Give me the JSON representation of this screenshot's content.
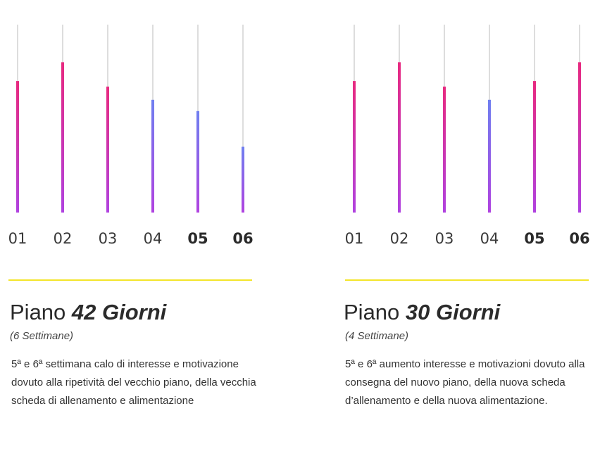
{
  "chart_data": [
    {
      "type": "bar",
      "categories": [
        "01",
        "02",
        "03",
        "04",
        "05",
        "06"
      ],
      "bold_categories": [
        "05",
        "06"
      ],
      "values": [
        70,
        80,
        67,
        60,
        54,
        35
      ],
      "value_colors": [
        "#e8297f",
        "#e8297f",
        "#e8297f",
        "#6f7ff0",
        "#6f7ff0",
        "#6f7ff0"
      ],
      "bottom_color": "#b042e0",
      "track_color": "#dddddd",
      "ylim": [
        0,
        100
      ]
    },
    {
      "type": "bar",
      "categories": [
        "01",
        "02",
        "03",
        "04",
        "05",
        "06"
      ],
      "bold_categories": [
        "05",
        "06"
      ],
      "values": [
        70,
        80,
        67,
        60,
        70,
        80
      ],
      "value_colors": [
        "#e8297f",
        "#e8297f",
        "#e8297f",
        "#6f7ff0",
        "#e8297f",
        "#e8297f"
      ],
      "bottom_color": "#b042e0",
      "track_color": "#dddddd",
      "ylim": [
        0,
        100
      ]
    }
  ],
  "accent_color": "#f4e52a",
  "plans": [
    {
      "title_prefix": "Piano",
      "title_emphasis": "42 Giorni",
      "subtitle": "(6 Settimane)",
      "description": "5ª e 6ª settimana calo di interesse e motivazione dovuto alla ripetività del vecchio piano, della vecchia scheda di allenamento e alimentazione"
    },
    {
      "title_prefix": "Piano",
      "title_emphasis": "30 Giorni",
      "subtitle": "(4 Settimane)",
      "description": "5ª e 6ª aumento interesse e motivazioni dovuto alla consegna del nuovo piano, della nuova scheda d’allenamento e della nuova alimentazione."
    }
  ]
}
